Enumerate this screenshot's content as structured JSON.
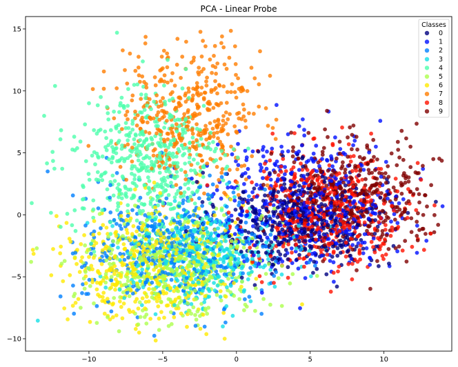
{
  "chart_data": {
    "type": "scatter",
    "title": "PCA - Linear Probe",
    "xlabel": "",
    "ylabel": "",
    "xlim": [
      -14.3,
      14.6
    ],
    "ylim": [
      -11.0,
      16.0
    ],
    "xticks": [
      -10,
      -5,
      0,
      5,
      10
    ],
    "yticks": [
      -10,
      -5,
      0,
      5,
      10,
      15
    ],
    "grid": false,
    "legend": {
      "title": "Classes",
      "placement": "top-right"
    },
    "point_alpha": 0.8,
    "series": [
      {
        "name": "0",
        "color": "#00007f",
        "centroid": [
          4.5,
          -0.5
        ],
        "spread": [
          2.8,
          2.0
        ],
        "count": 450,
        "points": [
          [
            0.6,
            -1.3
          ],
          [
            2.0,
            -0.6
          ],
          [
            3.4,
            0.8
          ],
          [
            5.8,
            -2.6
          ],
          [
            6.8,
            1.4
          ],
          [
            8.9,
            0.2
          ],
          [
            1.4,
            -2.2
          ],
          [
            4.1,
            -3.6
          ]
        ]
      },
      {
        "name": "1",
        "color": "#0010ff",
        "centroid": [
          5.0,
          1.0
        ],
        "spread": [
          3.4,
          2.6
        ],
        "count": 450,
        "points": [
          [
            3.5,
            6.5
          ],
          [
            4.6,
            6.4
          ],
          [
            1.7,
            3.8
          ],
          [
            6.4,
            3.1
          ],
          [
            8.6,
            -3.1
          ],
          [
            6.6,
            -5.4
          ],
          [
            9.9,
            2.4
          ],
          [
            -0.6,
            -1.4
          ]
        ]
      },
      {
        "name": "2",
        "color": "#0080ff",
        "centroid": [
          -4.0,
          -2.5
        ],
        "spread": [
          3.2,
          2.4
        ],
        "count": 450,
        "points": [
          [
            -12.8,
            3.5
          ],
          [
            -7.8,
            -0.4
          ],
          [
            -5.6,
            -3.0
          ],
          [
            -2.6,
            -1.4
          ],
          [
            -3.3,
            -7.2
          ],
          [
            1.3,
            -3.9
          ],
          [
            -8.8,
            4.6
          ],
          [
            -4.2,
            -4.6
          ]
        ]
      },
      {
        "name": "3",
        "color": "#15e0e6",
        "centroid": [
          -2.5,
          -3.5
        ],
        "spread": [
          2.8,
          1.8
        ],
        "count": 380,
        "points": [
          [
            -2.1,
            -4.5
          ],
          [
            -0.6,
            -2.8
          ],
          [
            1.5,
            -3.3
          ],
          [
            2.6,
            -5.8
          ],
          [
            -3.5,
            -7.1
          ],
          [
            -5.1,
            -4.0
          ],
          [
            0.5,
            -6.2
          ],
          [
            -1.7,
            -1.9
          ]
        ]
      },
      {
        "name": "4",
        "color": "#4dffad",
        "centroid": [
          -6.0,
          4.0
        ],
        "spread": [
          2.6,
          3.0
        ],
        "count": 500,
        "points": [
          [
            -12.3,
            10.4
          ],
          [
            -8.1,
            14.7
          ],
          [
            -10.0,
            9.0
          ],
          [
            -7.5,
            7.0
          ],
          [
            -9.1,
            2.8
          ],
          [
            -5.0,
            1.0
          ],
          [
            -2.5,
            5.6
          ],
          [
            -11.0,
            6.3
          ]
        ]
      },
      {
        "name": "5",
        "color": "#adff4d",
        "centroid": [
          -4.0,
          -4.0
        ],
        "spread": [
          3.0,
          2.2
        ],
        "count": 450,
        "points": [
          [
            -9.0,
            -5.1
          ],
          [
            -6.0,
            -4.1
          ],
          [
            -3.2,
            -2.6
          ],
          [
            -1.9,
            -7.5
          ],
          [
            -4.6,
            -6.8
          ],
          [
            0.2,
            -6.8
          ],
          [
            -8.0,
            -2.1
          ],
          [
            -2.4,
            -4.7
          ]
        ]
      },
      {
        "name": "6",
        "color": "#ffea00",
        "centroid": [
          -6.0,
          -4.0
        ],
        "spread": [
          2.8,
          2.4
        ],
        "count": 450,
        "points": [
          [
            -12.2,
            -0.1
          ],
          [
            -10.0,
            -3.4
          ],
          [
            -6.6,
            -9.5
          ],
          [
            -4.9,
            -8.3
          ],
          [
            -7.2,
            -6.0
          ],
          [
            -0.8,
            -10.0
          ],
          [
            -3.1,
            -6.3
          ],
          [
            -8.1,
            -5.6
          ]
        ]
      },
      {
        "name": "7",
        "color": "#ff7d00",
        "centroid": [
          -3.0,
          8.0
        ],
        "spread": [
          2.4,
          2.6
        ],
        "count": 420,
        "points": [
          [
            -4.0,
            14.2
          ],
          [
            -2.1,
            13.6
          ],
          [
            1.6,
            13.2
          ],
          [
            -2.6,
            11.5
          ],
          [
            -4.1,
            8.6
          ],
          [
            -5.9,
            6.6
          ],
          [
            -1.3,
            9.8
          ],
          [
            2.0,
            8.6
          ]
        ]
      },
      {
        "name": "8",
        "color": "#ff1200",
        "centroid": [
          6.0,
          0.5
        ],
        "spread": [
          2.8,
          2.2
        ],
        "count": 450,
        "points": [
          [
            6.4,
            -6.2
          ],
          [
            8.9,
            -4.2
          ],
          [
            10.1,
            -1.2
          ],
          [
            4.3,
            -0.3
          ],
          [
            7.7,
            2.5
          ],
          [
            3.9,
            2.9
          ],
          [
            9.8,
            3.7
          ],
          [
            5.8,
            0.3
          ]
        ]
      },
      {
        "name": "9",
        "color": "#7f0000",
        "centroid": [
          8.0,
          1.5
        ],
        "spread": [
          2.8,
          2.2
        ],
        "count": 400,
        "points": [
          [
            13.2,
            2.4
          ],
          [
            11.8,
            5.5
          ],
          [
            12.4,
            1.0
          ],
          [
            9.8,
            -1.8
          ],
          [
            7.0,
            5.9
          ],
          [
            6.0,
            6.9
          ],
          [
            10.8,
            -2.7
          ],
          [
            8.9,
            4.1
          ]
        ]
      }
    ]
  }
}
